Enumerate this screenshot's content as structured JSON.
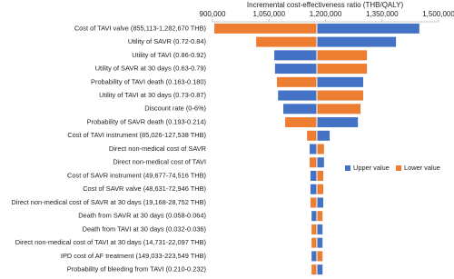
{
  "chart_data": {
    "type": "tornado",
    "x_label": "Incremental cost-effectiveness ratio (THB/QALY)",
    "xlim": [
      900000,
      1500000
    ],
    "xticks": [
      {
        "value": 900000,
        "label": "900,000"
      },
      {
        "value": 1050000,
        "label": "1,050,000"
      },
      {
        "value": 1200000,
        "label": "1,200,000"
      },
      {
        "value": 1350000,
        "label": "1,350,000"
      },
      {
        "value": 1500000,
        "label": "1,500,000"
      }
    ],
    "x_axis_position": "top",
    "base": 1177000,
    "legend_position": "right",
    "categories": [
      "Cost of TAVI valve (855,113-1,282,670 THB)",
      "Utility of SAVR (0.72-0.84)",
      "Utility of TAVI (0.86-0.92)",
      "Utility of SAVR at 30 days (0.63-0.79)",
      "Probability of TAVI death (0.163-0.180)",
      "Utility of TAVI at 30 days (0.73-0.87)",
      "Discount rate (0-6%)",
      "Probability of SAVR death (0.193-0.214)",
      "Cost of TAVI instrument (85,026-127,538 THB)",
      "Direct non-medical cost of SAVR",
      "Direct non-medical cost of TAVI",
      "Cost of SAVR instrument (49,677-74,516 THB)",
      "Cost of SAVR valve (48,631-72,946 THB)",
      "Direct non-medical cost of SAVR at 30 days (19,168-28,752 THB)",
      "Death from SAVR at 30 days (0.058-0.064)",
      "Death from TAVI at 30 days (0.032-0.036)",
      "Direct non-medical cost of TAVI at 30 days (14,731-22,097 THB)",
      "IPD cost of AF treatment (149,033-223,549 THB)",
      "Probability of bleeding from TAVI (0.210-0.232)"
    ],
    "series": [
      {
        "name": "Upper value",
        "color": "#4472c4",
        "values": [
          1449000,
          1387000,
          1064000,
          1066000,
          1300000,
          1074000,
          1088000,
          1286000,
          1211000,
          1158000,
          1196000,
          1160000,
          1160000,
          1194000,
          1163000,
          1192000,
          1192000,
          1163000,
          1192000
        ]
      },
      {
        "name": "Lower value",
        "color": "#ed7d31",
        "values": [
          905000,
          1016000,
          1310000,
          1310000,
          1071000,
          1300000,
          1293000,
          1093000,
          1151000,
          1196000,
          1158000,
          1194000,
          1194000,
          1160000,
          1192000,
          1163000,
          1163000,
          1192000,
          1163000
        ]
      }
    ]
  }
}
